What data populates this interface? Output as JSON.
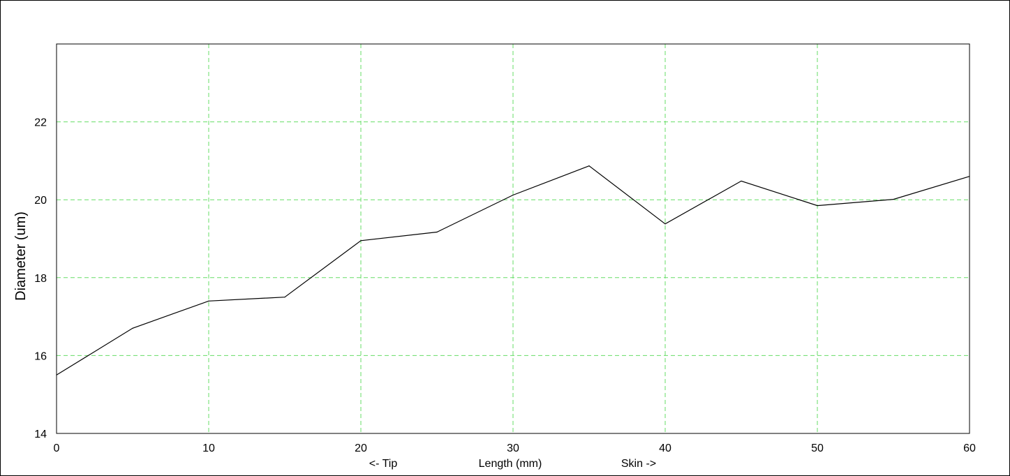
{
  "chart_data": {
    "type": "line",
    "title": "",
    "xlabel": "Length (mm)",
    "xlabel_left": "<- Tip",
    "xlabel_right": "Skin ->",
    "ylabel": "Diameter (um)",
    "xlim": [
      0,
      60
    ],
    "ylim": [
      14,
      24
    ],
    "xticks": [
      0,
      10,
      20,
      30,
      40,
      50,
      60
    ],
    "yticks": [
      14,
      16,
      18,
      20,
      22
    ],
    "grid": true,
    "grid_color": "#66dd66",
    "line_color": "#000000",
    "series": [
      {
        "x": [
          0,
          5,
          10,
          15,
          20,
          25,
          30,
          35,
          40,
          45,
          50,
          55,
          60
        ],
        "values": [
          15.5,
          16.7,
          17.4,
          17.5,
          18.95,
          19.17,
          20.12,
          20.87,
          19.38,
          20.48,
          19.85,
          20.01,
          20.6
        ]
      }
    ]
  }
}
